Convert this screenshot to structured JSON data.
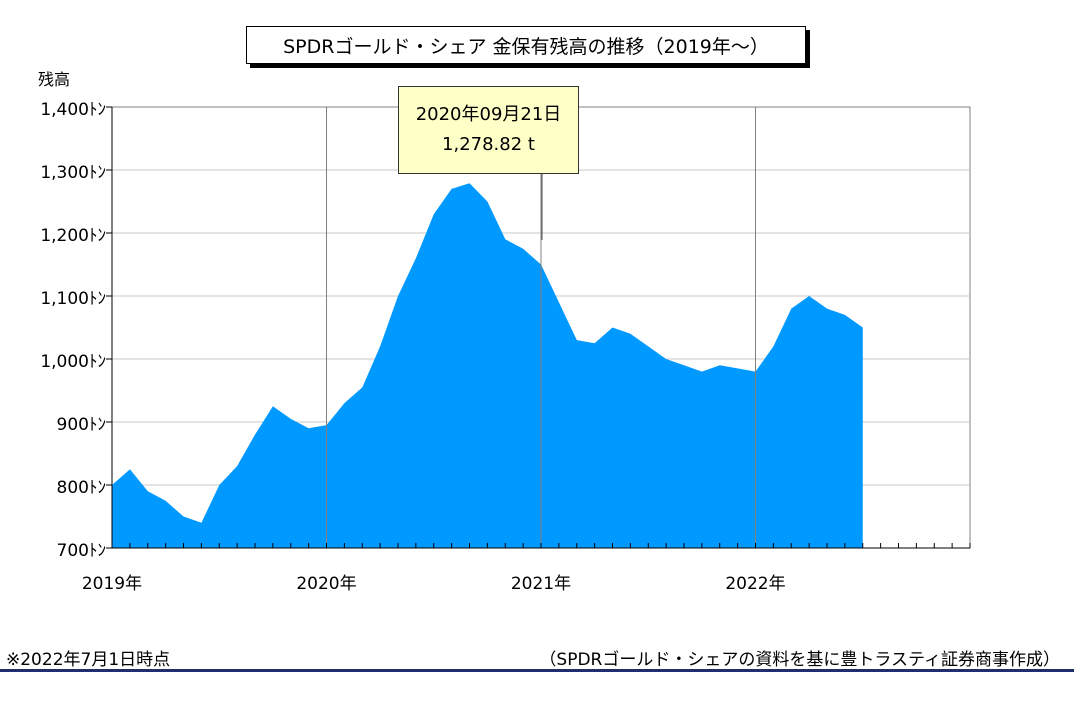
{
  "chart_data": {
    "type": "area",
    "title": "SPDRゴールド・シェア 金保有残高の推移（2019年～）",
    "ylabel": "残高",
    "ylim": [
      700,
      1400
    ],
    "yticks": [
      700,
      800,
      900,
      1000,
      1100,
      1200,
      1300,
      1400
    ],
    "ytick_labels": [
      "700ﾄﾝ",
      "800ﾄﾝ",
      "900ﾄﾝ",
      "1,000ﾄﾝ",
      "1,100ﾄﾝ",
      "1,200ﾄﾝ",
      "1,300ﾄﾝ",
      "1,400ﾄﾝ"
    ],
    "xlim": [
      "2019-01",
      "2023-01"
    ],
    "xtick_labels": [
      "2019年",
      "2020年",
      "2021年",
      "2022年"
    ],
    "grid": true,
    "color": "#0099ff",
    "series": [
      {
        "x": [
          "2019-01",
          "2019-02",
          "2019-03",
          "2019-04",
          "2019-05",
          "2019-06",
          "2019-07",
          "2019-08",
          "2019-09",
          "2019-10",
          "2019-11",
          "2019-12",
          "2020-01",
          "2020-02",
          "2020-03",
          "2020-04",
          "2020-05",
          "2020-06",
          "2020-07",
          "2020-08",
          "2020-09",
          "2020-10",
          "2020-11",
          "2020-12",
          "2021-01",
          "2021-02",
          "2021-03",
          "2021-04",
          "2021-05",
          "2021-06",
          "2021-07",
          "2021-08",
          "2021-09",
          "2021-10",
          "2021-11",
          "2021-12",
          "2022-01",
          "2022-02",
          "2022-03",
          "2022-04",
          "2022-05",
          "2022-06",
          "2022-07"
        ],
        "y": [
          800,
          825,
          790,
          775,
          750,
          740,
          800,
          830,
          880,
          925,
          905,
          890,
          895,
          930,
          955,
          1020,
          1100,
          1160,
          1230,
          1270,
          1279,
          1250,
          1190,
          1175,
          1150,
          1090,
          1030,
          1025,
          1050,
          1040,
          1020,
          1000,
          990,
          980,
          990,
          985,
          980,
          1020,
          1080,
          1100,
          1080,
          1070,
          1050
        ]
      }
    ],
    "annotation": {
      "date": "2020年09月21日",
      "value": "1,278.82 t"
    }
  },
  "footnote": "※2022年7月1日時点",
  "source": "（SPDRゴールド・シェアの資料を基に豊トラスティ証券商事作成）"
}
